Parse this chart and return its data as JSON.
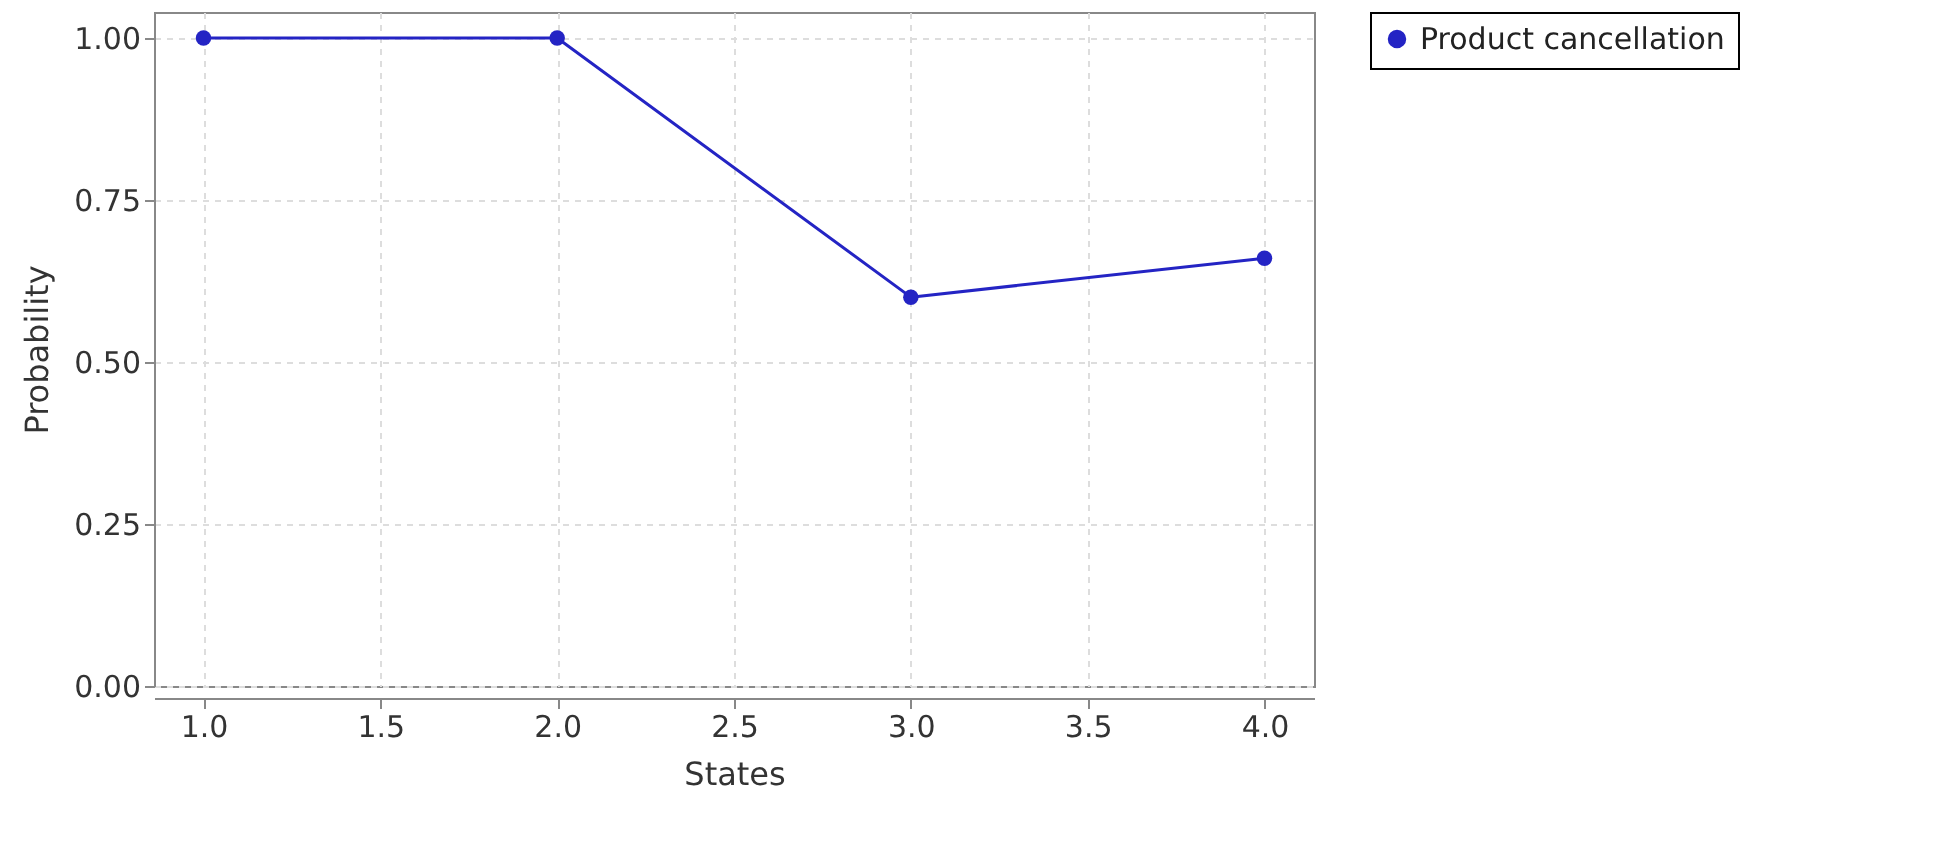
{
  "chart_data": {
    "type": "line",
    "xlabel": "States",
    "ylabel": "Probability",
    "x": [
      1,
      2,
      3,
      4
    ],
    "series": [
      {
        "name": "Product cancellation",
        "color": "#2424c4",
        "values": [
          1.0,
          1.0,
          0.6,
          0.66
        ]
      }
    ],
    "xlim": [
      0.86,
      4.14
    ],
    "xticks": [
      {
        "value": 1,
        "label": "1.0"
      },
      {
        "value": 1.5,
        "label": "1.5"
      },
      {
        "value": 2,
        "label": "2.0"
      },
      {
        "value": 2.5,
        "label": "2.5"
      },
      {
        "value": 3,
        "label": "3.0"
      },
      {
        "value": 3.5,
        "label": "3.5"
      },
      {
        "value": 4,
        "label": "4.0"
      }
    ],
    "ylim": [
      0,
      1.04
    ],
    "yticks": [
      {
        "value": 0,
        "label": "0.00"
      },
      {
        "value": 0.25,
        "label": "0.25"
      },
      {
        "value": 0.5,
        "label": "0.50"
      },
      {
        "value": 0.75,
        "label": "0.75"
      },
      {
        "value": 1,
        "label": "1.00"
      }
    ],
    "grid": true,
    "legend": "right",
    "marker": "circle",
    "line_style": "solid"
  }
}
